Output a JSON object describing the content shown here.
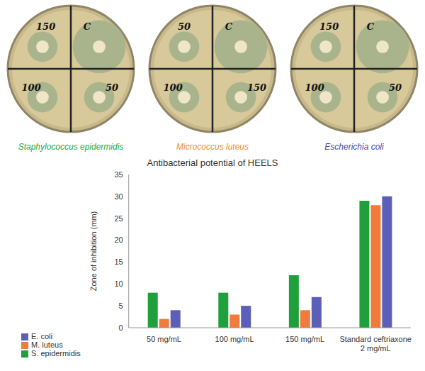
{
  "plates": [
    {
      "caption": "Staphylococcus epidermidis",
      "caption_color": "#2aa84a",
      "quadrants": [
        "150",
        "C",
        "100",
        "50"
      ]
    },
    {
      "caption": "Micrococcus luteus",
      "caption_color": "#f08a3c",
      "quadrants": [
        "50",
        "C",
        "100",
        "150"
      ]
    },
    {
      "caption": "Escherichia coli",
      "caption_color": "#4a4aa8",
      "quadrants": [
        "150",
        "C",
        "100",
        "50"
      ]
    }
  ],
  "chart_data": {
    "type": "bar",
    "title": "Antibacterial potential of HEELS",
    "y_label": "Zone of inhibition (mm)",
    "categories": [
      "50 mg/mL",
      "100 mg/mL",
      "150 mg/mL",
      "Standard ceftriaxone 2 mg/mL"
    ],
    "series": [
      {
        "name": "S. epidermidis",
        "color": "#1fa03c",
        "values": [
          8,
          8,
          12,
          29
        ]
      },
      {
        "name": "M. luteus",
        "color": "#f07b3a",
        "values": [
          2,
          3,
          4,
          28
        ]
      },
      {
        "name": "E. coli",
        "color": "#5b5fb8",
        "values": [
          4,
          5,
          7,
          30
        ]
      }
    ],
    "ylim": [
      0,
      35
    ],
    "yticks": [
      0,
      5,
      10,
      15,
      20,
      25,
      30,
      35
    ],
    "grid": false,
    "legend": "bottom-left"
  }
}
